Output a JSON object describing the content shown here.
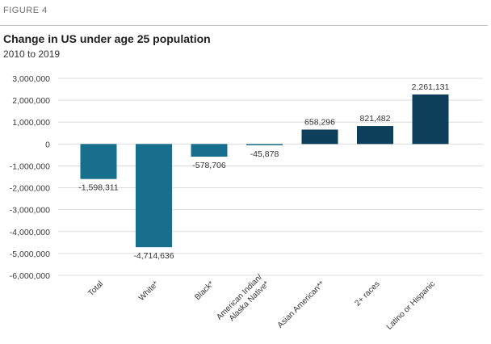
{
  "figure_label": "FIGURE 4",
  "chart_data": {
    "type": "bar",
    "title": "Change in US under age 25 population",
    "subtitle": "2010 to 2019",
    "categories": [
      "Total",
      "White*",
      "Black*",
      [
        "American Indian/",
        "Alaska Native*"
      ],
      "Asian American**",
      "2+ races",
      "Latino or Hispanic"
    ],
    "values": [
      -1598311,
      -4714636,
      -578706,
      -45878,
      658296,
      821482,
      2261131
    ],
    "value_labels": [
      "-1,598,311",
      "-4,714,636",
      "-578,706",
      "-45,878",
      "658,296",
      "821,482",
      "2,261,131"
    ],
    "ylim": [
      -6000000,
      3000000
    ],
    "yticks": [
      3000000,
      2000000,
      1000000,
      0,
      -1000000,
      -2000000,
      -3000000,
      -4000000,
      -5000000,
      -6000000
    ],
    "ytick_labels": [
      "3,000,000",
      "2,000,000",
      "1,000,000",
      "0",
      "-1,000,000",
      "-2,000,000",
      "-3,000,000",
      "-4,000,000",
      "-5,000,000",
      "-6,000,000"
    ],
    "grid": true,
    "colors": {
      "negative": "#176e8d",
      "positive": "#0d3e5a",
      "grid": "#dcdcdc"
    }
  }
}
